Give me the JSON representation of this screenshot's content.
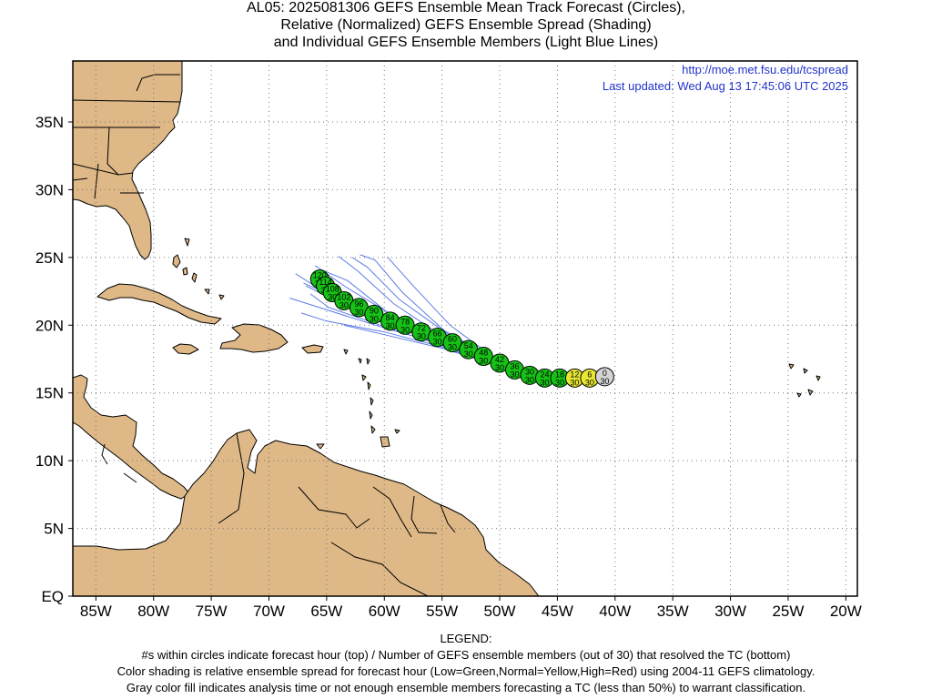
{
  "title": {
    "line1": "AL05: 2025081306 GEFS Ensemble Mean Track Forecast (Circles),",
    "line2": "Relative (Normalized) GEFS Ensemble Spread (Shading)",
    "line3": "and Individual GEFS Ensemble Members (Light Blue Lines)"
  },
  "source_url": "http://moe.met.fsu.edu/tcspread",
  "last_updated": "Last updated: Wed Aug 13 17:45:06 UTC 2025",
  "map": {
    "lon_range": [
      -87,
      -19
    ],
    "lat_range": [
      0,
      39.5
    ],
    "x_ticks": [
      {
        "lon": -85,
        "label": "85W"
      },
      {
        "lon": -80,
        "label": "80W"
      },
      {
        "lon": -75,
        "label": "75W"
      },
      {
        "lon": -70,
        "label": "70W"
      },
      {
        "lon": -65,
        "label": "65W"
      },
      {
        "lon": -60,
        "label": "60W"
      },
      {
        "lon": -55,
        "label": "55W"
      },
      {
        "lon": -50,
        "label": "50W"
      },
      {
        "lon": -45,
        "label": "45W"
      },
      {
        "lon": -40,
        "label": "40W"
      },
      {
        "lon": -35,
        "label": "35W"
      },
      {
        "lon": -30,
        "label": "30W"
      },
      {
        "lon": -25,
        "label": "25W"
      },
      {
        "lon": -20,
        "label": "20W"
      }
    ],
    "y_ticks": [
      {
        "lat": 0,
        "label": "EQ"
      },
      {
        "lat": 5,
        "label": "5N"
      },
      {
        "lat": 10,
        "label": "10N"
      },
      {
        "lat": 15,
        "label": "15N"
      },
      {
        "lat": 20,
        "label": "20N"
      },
      {
        "lat": 25,
        "label": "25N"
      },
      {
        "lat": 30,
        "label": "30N"
      },
      {
        "lat": 35,
        "label": "35N"
      }
    ],
    "grid": "dotted",
    "colors": {
      "land": "#deb887",
      "coast": "#000000",
      "member_line": "#5b7be8",
      "low_spread": "#16c216",
      "normal_spread": "#e6e633",
      "high_spread": "#e02020",
      "analysis": "#d3d3d3",
      "link": "#2233cc"
    }
  },
  "track": [
    {
      "hour": "0",
      "members": "30",
      "lon": -40.9,
      "lat": 16.2,
      "spread": "analysis"
    },
    {
      "hour": "6",
      "members": "30",
      "lon": -42.2,
      "lat": 16.1,
      "spread": "normal"
    },
    {
      "hour": "12",
      "members": "30",
      "lon": -43.5,
      "lat": 16.1,
      "spread": "normal"
    },
    {
      "hour": "18",
      "members": "30",
      "lon": -44.8,
      "lat": 16.1,
      "spread": "low"
    },
    {
      "hour": "24",
      "members": "30",
      "lon": -46.1,
      "lat": 16.1,
      "spread": "low"
    },
    {
      "hour": "30",
      "members": "30",
      "lon": -47.4,
      "lat": 16.3,
      "spread": "low"
    },
    {
      "hour": "36",
      "members": "30",
      "lon": -48.7,
      "lat": 16.7,
      "spread": "low"
    },
    {
      "hour": "42",
      "members": "30",
      "lon": -50.0,
      "lat": 17.2,
      "spread": "low"
    },
    {
      "hour": "48",
      "members": "30",
      "lon": -51.4,
      "lat": 17.7,
      "spread": "low"
    },
    {
      "hour": "54",
      "members": "30",
      "lon": -52.7,
      "lat": 18.2,
      "spread": "low"
    },
    {
      "hour": "60",
      "members": "30",
      "lon": -54.1,
      "lat": 18.7,
      "spread": "low"
    },
    {
      "hour": "66",
      "members": "30",
      "lon": -55.4,
      "lat": 19.1,
      "spread": "low"
    },
    {
      "hour": "72",
      "members": "30",
      "lon": -56.8,
      "lat": 19.5,
      "spread": "low"
    },
    {
      "hour": "78",
      "members": "30",
      "lon": -58.2,
      "lat": 20.0,
      "spread": "low"
    },
    {
      "hour": "84",
      "members": "30",
      "lon": -59.5,
      "lat": 20.3,
      "spread": "low"
    },
    {
      "hour": "90",
      "members": "30",
      "lon": -60.9,
      "lat": 20.8,
      "spread": "low"
    },
    {
      "hour": "96",
      "members": "30",
      "lon": -62.2,
      "lat": 21.3,
      "spread": "low"
    },
    {
      "hour": "102",
      "members": "30",
      "lon": -63.5,
      "lat": 21.8,
      "spread": "low"
    },
    {
      "hour": "108",
      "members": "30",
      "lon": -64.5,
      "lat": 22.4,
      "spread": "low"
    },
    {
      "hour": "114",
      "members": "30",
      "lon": -65.1,
      "lat": 22.9,
      "spread": "low"
    },
    {
      "hour": "120",
      "members": "30",
      "lon": -65.6,
      "lat": 23.4,
      "spread": "low"
    }
  ],
  "ensemble_members": [
    [
      [
        -45.4,
        15.8
      ],
      [
        -50,
        17.0
      ],
      [
        -55,
        18.8
      ],
      [
        -60,
        20.3
      ],
      [
        -64,
        21.7
      ],
      [
        -66.8,
        22.9
      ]
    ],
    [
      [
        -45.4,
        15.8
      ],
      [
        -50,
        17.1
      ],
      [
        -55,
        18.9
      ],
      [
        -60,
        20.5
      ],
      [
        -64,
        22.4
      ],
      [
        -66.3,
        23.7
      ]
    ],
    [
      [
        -45.4,
        15.8
      ],
      [
        -50,
        17.2
      ],
      [
        -55,
        19.0
      ],
      [
        -59.8,
        21.0
      ],
      [
        -63.2,
        23.3
      ],
      [
        -65.5,
        24.1
      ]
    ],
    [
      [
        -45.4,
        15.8
      ],
      [
        -50,
        17.2
      ],
      [
        -55,
        19.2
      ],
      [
        -59.2,
        21.6
      ],
      [
        -62.3,
        24.0
      ],
      [
        -64,
        25.1
      ]
    ],
    [
      [
        -45.4,
        15.8
      ],
      [
        -50,
        17.3
      ],
      [
        -54.8,
        19.6
      ],
      [
        -58.4,
        22.4
      ],
      [
        -60.8,
        24.8
      ],
      [
        -62.1,
        25.2
      ]
    ],
    [
      [
        -45.4,
        15.8
      ],
      [
        -50,
        17.3
      ],
      [
        -54.3,
        20.0
      ],
      [
        -57.5,
        22.9
      ],
      [
        -59.7,
        25.0
      ]
    ],
    [
      [
        -45.4,
        15.8
      ],
      [
        -50,
        17.1
      ],
      [
        -55,
        18.6
      ],
      [
        -60,
        19.8
      ],
      [
        -64.5,
        21.0
      ],
      [
        -68.2,
        22.0
      ]
    ],
    [
      [
        -45.4,
        15.8
      ],
      [
        -50,
        17.0
      ],
      [
        -55,
        18.4
      ],
      [
        -60,
        19.5
      ],
      [
        -65,
        20.3
      ],
      [
        -67.2,
        20.9
      ]
    ],
    [
      [
        -45.4,
        15.8
      ],
      [
        -50,
        17.0
      ],
      [
        -55,
        18.5
      ],
      [
        -60,
        19.9
      ],
      [
        -64.8,
        21.3
      ],
      [
        -66.4,
        22.3
      ]
    ],
    [
      [
        -45.4,
        15.8
      ],
      [
        -50,
        17.1
      ],
      [
        -55,
        18.7
      ],
      [
        -60,
        20.1
      ],
      [
        -64.2,
        21.9
      ],
      [
        -67.7,
        23.8
      ]
    ],
    [
      [
        -45.4,
        15.8
      ],
      [
        -50,
        17.0
      ],
      [
        -55,
        18.3
      ],
      [
        -60,
        19.3
      ],
      [
        -63.5,
        20.0
      ]
    ],
    [
      [
        -45.4,
        15.8
      ],
      [
        -50,
        17.2
      ],
      [
        -55,
        18.9
      ],
      [
        -59.6,
        20.9
      ],
      [
        -63.3,
        22.8
      ],
      [
        -66,
        24.4
      ]
    ],
    [
      [
        -45.4,
        15.8
      ],
      [
        -50,
        17.3
      ],
      [
        -54.6,
        19.4
      ],
      [
        -58.7,
        21.9
      ],
      [
        -61.5,
        24.3
      ],
      [
        -62.8,
        25.0
      ]
    ],
    [
      [
        -45.4,
        15.8
      ],
      [
        -50,
        17.1
      ],
      [
        -55,
        18.8
      ],
      [
        -60,
        20.4
      ],
      [
        -64.6,
        22.2
      ],
      [
        -67.0,
        23.1
      ]
    ]
  ],
  "legend": {
    "heading": "LEGEND:",
    "line1": "#s within circles indicate forecast hour (top) / Number of GEFS ensemble members (out of 30) that resolved the TC (bottom)",
    "line2": "Color shading is relative ensemble spread for forecast hour (Low=Green,Normal=Yellow,High=Red) using 2004-11 GEFS climatology.",
    "line3": "Gray color fill indicates analysis time or not enough ensemble members forecasting a TC (less than 50%) to warrant classification."
  }
}
